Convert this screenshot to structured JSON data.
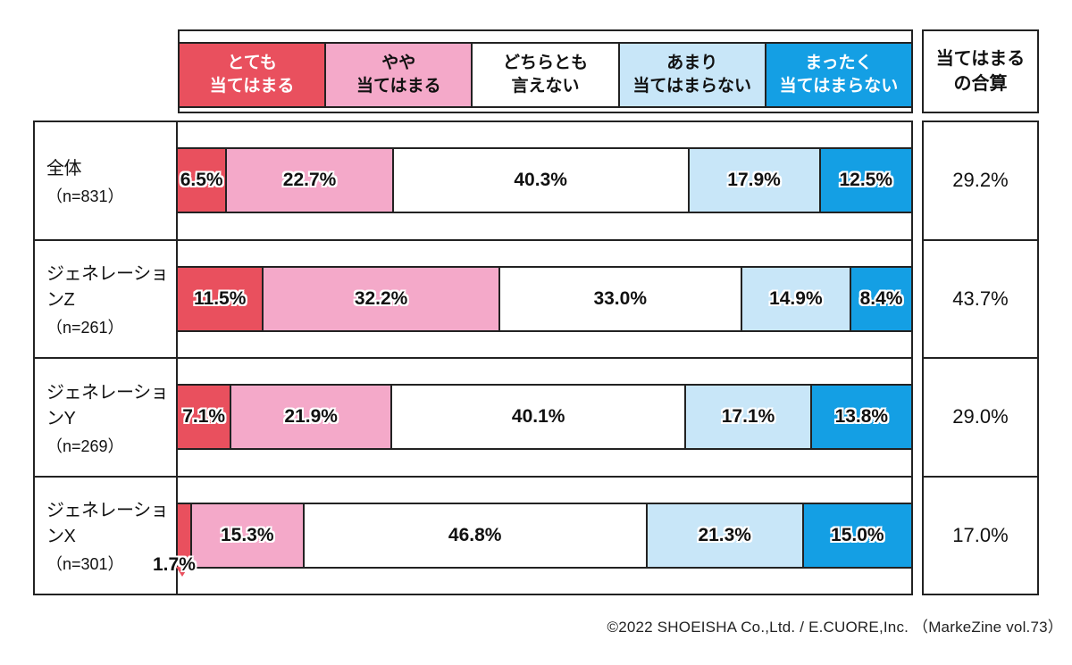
{
  "legend": {
    "categories": [
      {
        "label": "とても\n当てはまる",
        "color": "#E9505E",
        "text_color": "#FFFFFF"
      },
      {
        "label": "やや\n当てはまる",
        "color": "#F4A9C9",
        "text_color": "#111111"
      },
      {
        "label": "どちらとも\n言えない",
        "color": "#FFFFFF",
        "text_color": "#111111"
      },
      {
        "label": "あまり\n当てはまらない",
        "color": "#C8E6F8",
        "text_color": "#111111"
      },
      {
        "label": "まったく\n当てはまらない",
        "color": "#149FE4",
        "text_color": "#FFFFFF"
      }
    ]
  },
  "summary_header": "当てはまる\nの合算",
  "rows": [
    {
      "name": "全体",
      "n": "（n=831）",
      "values": [
        6.5,
        22.7,
        40.3,
        17.9,
        12.5
      ],
      "labels": [
        "6.5%",
        "22.7%",
        "40.3%",
        "17.9%",
        "12.5%"
      ],
      "summary": "29.2%",
      "callout_segment": null
    },
    {
      "name": "ジェネレーションZ",
      "n": "（n=261）",
      "values": [
        11.5,
        32.2,
        33.0,
        14.9,
        8.4
      ],
      "labels": [
        "11.5%",
        "32.2%",
        "33.0%",
        "14.9%",
        "8.4%"
      ],
      "summary": "43.7%",
      "callout_segment": null
    },
    {
      "name": "ジェネレーションY",
      "n": "（n=269）",
      "values": [
        7.1,
        21.9,
        40.1,
        17.1,
        13.8
      ],
      "labels": [
        "7.1%",
        "21.9%",
        "40.1%",
        "17.1%",
        "13.8%"
      ],
      "summary": "29.0%",
      "callout_segment": null
    },
    {
      "name": "ジェネレーションX",
      "n": "（n=301）",
      "values": [
        1.7,
        15.3,
        46.8,
        21.3,
        15.0
      ],
      "labels": [
        "1.7%",
        "15.3%",
        "46.8%",
        "21.3%",
        "15.0%"
      ],
      "summary": "17.0%",
      "callout_segment": 0
    }
  ],
  "footer": "©2022 SHOEISHA Co.,Ltd. / E.CUORE,Inc. （MarkeZine vol.73）",
  "colors": {
    "very_true": "#E9505E",
    "somewhat_true": "#F4A9C9",
    "neutral": "#FFFFFF",
    "not_really": "#C8E6F8",
    "not_at_all": "#149FE4",
    "border": "#222222"
  },
  "chart_data": {
    "type": "bar",
    "subtype": "horizontal-stacked-100pct",
    "unit": "%",
    "xlim": [
      0,
      100
    ],
    "legend_position": "top",
    "categories": [
      "全体（n=831）",
      "ジェネレーションZ（n=261）",
      "ジェネレーションY（n=269）",
      "ジェネレーションX（n=301）"
    ],
    "series": [
      {
        "name": "とても当てはまる",
        "color": "#E9505E",
        "values": [
          6.5,
          11.5,
          7.1,
          1.7
        ]
      },
      {
        "name": "やや当てはまる",
        "color": "#F4A9C9",
        "values": [
          22.7,
          32.2,
          21.9,
          15.3
        ]
      },
      {
        "name": "どちらとも言えない",
        "color": "#FFFFFF",
        "values": [
          40.3,
          33.0,
          40.1,
          46.8
        ]
      },
      {
        "name": "あまり当てはまらない",
        "color": "#C8E6F8",
        "values": [
          17.9,
          14.9,
          17.1,
          21.3
        ]
      },
      {
        "name": "まったく当てはまらない",
        "color": "#149FE4",
        "values": [
          12.5,
          8.4,
          13.8,
          15.0
        ]
      }
    ],
    "summary_column": {
      "header": "当てはまるの合算",
      "values": [
        29.2,
        43.7,
        29.0,
        17.0
      ]
    },
    "source": "©2022 SHOEISHA Co.,Ltd. / E.CUORE,Inc. （MarkeZine vol.73）"
  }
}
